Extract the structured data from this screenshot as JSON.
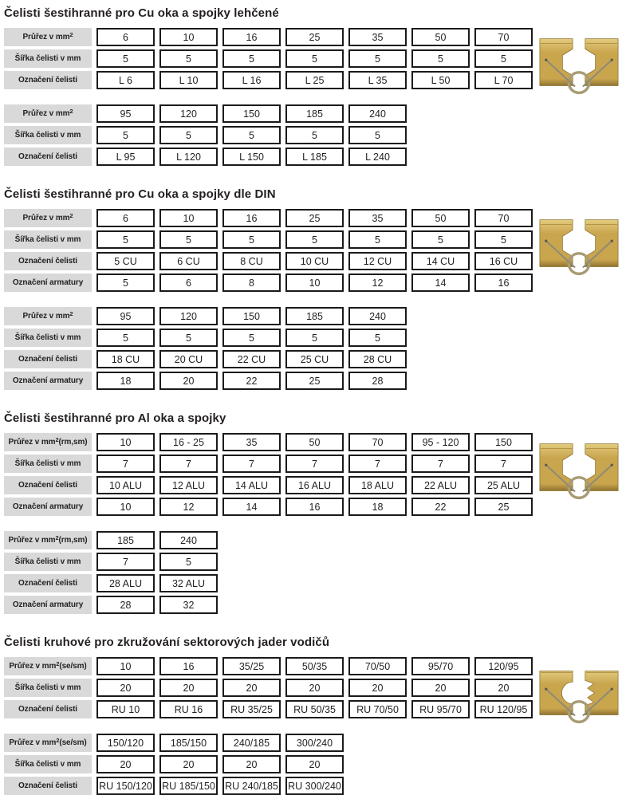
{
  "colors": {
    "label_bg": "#d9d9d9",
    "cell_border": "#1a1a1a",
    "text_color": "#231f20",
    "brass_light": "#e2cb7e",
    "brass_mid": "#c9a54e",
    "brass_dark": "#8e7330",
    "spring_wire": "#8d8b77",
    "spring_ring": "#a89c74"
  },
  "sections": [
    {
      "title": "Čelisti šestihranné pro Cu oka a spojky lehčené",
      "photo": "hex-jaws",
      "tables": [
        {
          "rows": [
            {
              "id": "prurez",
              "label": {
                "pre": "Průřez v mm",
                "sup": "2"
              },
              "values": [
                "6",
                "10",
                "16",
                "25",
                "35",
                "50",
                "70"
              ]
            },
            {
              "id": "sirka",
              "label": {
                "pre": "Šířka čelisti v mm"
              },
              "values": [
                "5",
                "5",
                "5",
                "5",
                "5",
                "5",
                "5"
              ]
            },
            {
              "id": "oznaceni-celisti",
              "label": {
                "pre": "Označení čelisti"
              },
              "values": [
                "L 6",
                "L 10",
                "L 16",
                "L 25",
                "L 35",
                "L 50",
                "L 70"
              ]
            }
          ]
        },
        {
          "rows": [
            {
              "id": "prurez",
              "label": {
                "pre": "Průřez v mm",
                "sup": "2"
              },
              "values": [
                "95",
                "120",
                "150",
                "185",
                "240"
              ]
            },
            {
              "id": "sirka",
              "label": {
                "pre": "Šířka čelisti v mm"
              },
              "values": [
                "5",
                "5",
                "5",
                "5",
                "5"
              ]
            },
            {
              "id": "oznaceni-celisti",
              "label": {
                "pre": "Označení čelisti"
              },
              "values": [
                "L 95",
                "L 120",
                "L 150",
                "L 185",
                "L 240"
              ]
            }
          ]
        }
      ]
    },
    {
      "title": "Čelisti šestihranné pro Cu oka a spojky dle DIN",
      "photo": "hex-jaws",
      "tables": [
        {
          "rows": [
            {
              "id": "prurez",
              "label": {
                "pre": "Průřez v mm",
                "sup": "2"
              },
              "values": [
                "6",
                "10",
                "16",
                "25",
                "35",
                "50",
                "70"
              ]
            },
            {
              "id": "sirka",
              "label": {
                "pre": "Šířka čelisti v mm"
              },
              "values": [
                "5",
                "5",
                "5",
                "5",
                "5",
                "5",
                "5"
              ]
            },
            {
              "id": "oznaceni-celisti",
              "label": {
                "pre": "Označení čelisti"
              },
              "values": [
                "5 CU",
                "6 CU",
                "8 CU",
                "10 CU",
                "12 CU",
                "14 CU",
                "16 CU"
              ]
            },
            {
              "id": "oznaceni-armatury",
              "label": {
                "pre": "Označení armatury"
              },
              "values": [
                "5",
                "6",
                "8",
                "10",
                "12",
                "14",
                "16"
              ]
            }
          ]
        },
        {
          "rows": [
            {
              "id": "prurez",
              "label": {
                "pre": "Průřez v mm",
                "sup": "2"
              },
              "values": [
                "95",
                "120",
                "150",
                "185",
                "240"
              ]
            },
            {
              "id": "sirka",
              "label": {
                "pre": "Šířka čelisti v mm"
              },
              "values": [
                "5",
                "5",
                "5",
                "5",
                "5"
              ]
            },
            {
              "id": "oznaceni-celisti",
              "label": {
                "pre": "Označení čelisti"
              },
              "values": [
                "18 CU",
                "20 CU",
                "22 CU",
                "25 CU",
                "28 CU"
              ]
            },
            {
              "id": "oznaceni-armatury",
              "label": {
                "pre": "Označení armatury"
              },
              "values": [
                "18",
                "20",
                "22",
                "25",
                "28"
              ]
            }
          ]
        }
      ]
    },
    {
      "title": "Čelisti šestihranné pro Al oka a spojky",
      "photo": "hex-jaws",
      "tables": [
        {
          "rows": [
            {
              "id": "prurez",
              "label": {
                "pre": "Průřez v mm",
                "sup": "2",
                "post": " (rm,sm)"
              },
              "values": [
                "10",
                "16 - 25",
                "35",
                "50",
                "70",
                "95 - 120",
                "150"
              ]
            },
            {
              "id": "sirka",
              "label": {
                "pre": "Šířka čelisti v mm"
              },
              "values": [
                "7",
                "7",
                "7",
                "7",
                "7",
                "7",
                "7"
              ]
            },
            {
              "id": "oznaceni-celisti",
              "label": {
                "pre": "Označení čelisti"
              },
              "values": [
                "10 ALU",
                "12 ALU",
                "14 ALU",
                "16 ALU",
                "18 ALU",
                "22 ALU",
                "25 ALU"
              ]
            },
            {
              "id": "oznaceni-armatury",
              "label": {
                "pre": "Označení armatury"
              },
              "values": [
                "10",
                "12",
                "14",
                "16",
                "18",
                "22",
                "25"
              ]
            }
          ]
        },
        {
          "rows": [
            {
              "id": "prurez",
              "label": {
                "pre": "Průřez v mm",
                "sup": "2",
                "post": " (rm,sm)"
              },
              "values": [
                "185",
                "240"
              ]
            },
            {
              "id": "sirka",
              "label": {
                "pre": "Šířka čelisti v mm"
              },
              "values": [
                "7",
                "5"
              ]
            },
            {
              "id": "oznaceni-celisti",
              "label": {
                "pre": "Označení čelisti"
              },
              "values": [
                "28 ALU",
                "32 ALU"
              ]
            },
            {
              "id": "oznaceni-armatury",
              "label": {
                "pre": "Označení armatury"
              },
              "values": [
                "28",
                "32"
              ]
            }
          ]
        }
      ]
    },
    {
      "title": "Čelisti kruhové pro zkružování sektorových jader vodičů",
      "photo": "round-jaws",
      "tables": [
        {
          "rows": [
            {
              "id": "prurez",
              "label": {
                "pre": "Průřez v mm",
                "sup": "2",
                "post": " (se/sm)"
              },
              "values": [
                "10",
                "16",
                "35/25",
                "50/35",
                "70/50",
                "95/70",
                "120/95"
              ]
            },
            {
              "id": "sirka",
              "label": {
                "pre": "Šířka čelisti v mm"
              },
              "values": [
                "20",
                "20",
                "20",
                "20",
                "20",
                "20",
                "20"
              ]
            },
            {
              "id": "oznaceni-celisti",
              "label": {
                "pre": "Označení čelisti"
              },
              "values": [
                "RU 10",
                "RU 16",
                "RU 35/25",
                "RU 50/35",
                "RU 70/50",
                "RU 95/70",
                "RU 120/95"
              ]
            }
          ]
        },
        {
          "rows": [
            {
              "id": "prurez",
              "label": {
                "pre": "Průřez v mm",
                "sup": "2",
                "post": " (se/sm)"
              },
              "values": [
                "150/120",
                "185/150",
                "240/185",
                "300/240"
              ]
            },
            {
              "id": "sirka",
              "label": {
                "pre": "Šířka čelisti v mm"
              },
              "values": [
                "20",
                "20",
                "20",
                "20"
              ]
            },
            {
              "id": "oznaceni-celisti",
              "label": {
                "pre": "Označení čelisti"
              },
              "values": [
                "RU 150/120",
                "RU 185/150",
                "RU 240/185",
                "RU 300/240"
              ]
            }
          ]
        }
      ]
    }
  ]
}
